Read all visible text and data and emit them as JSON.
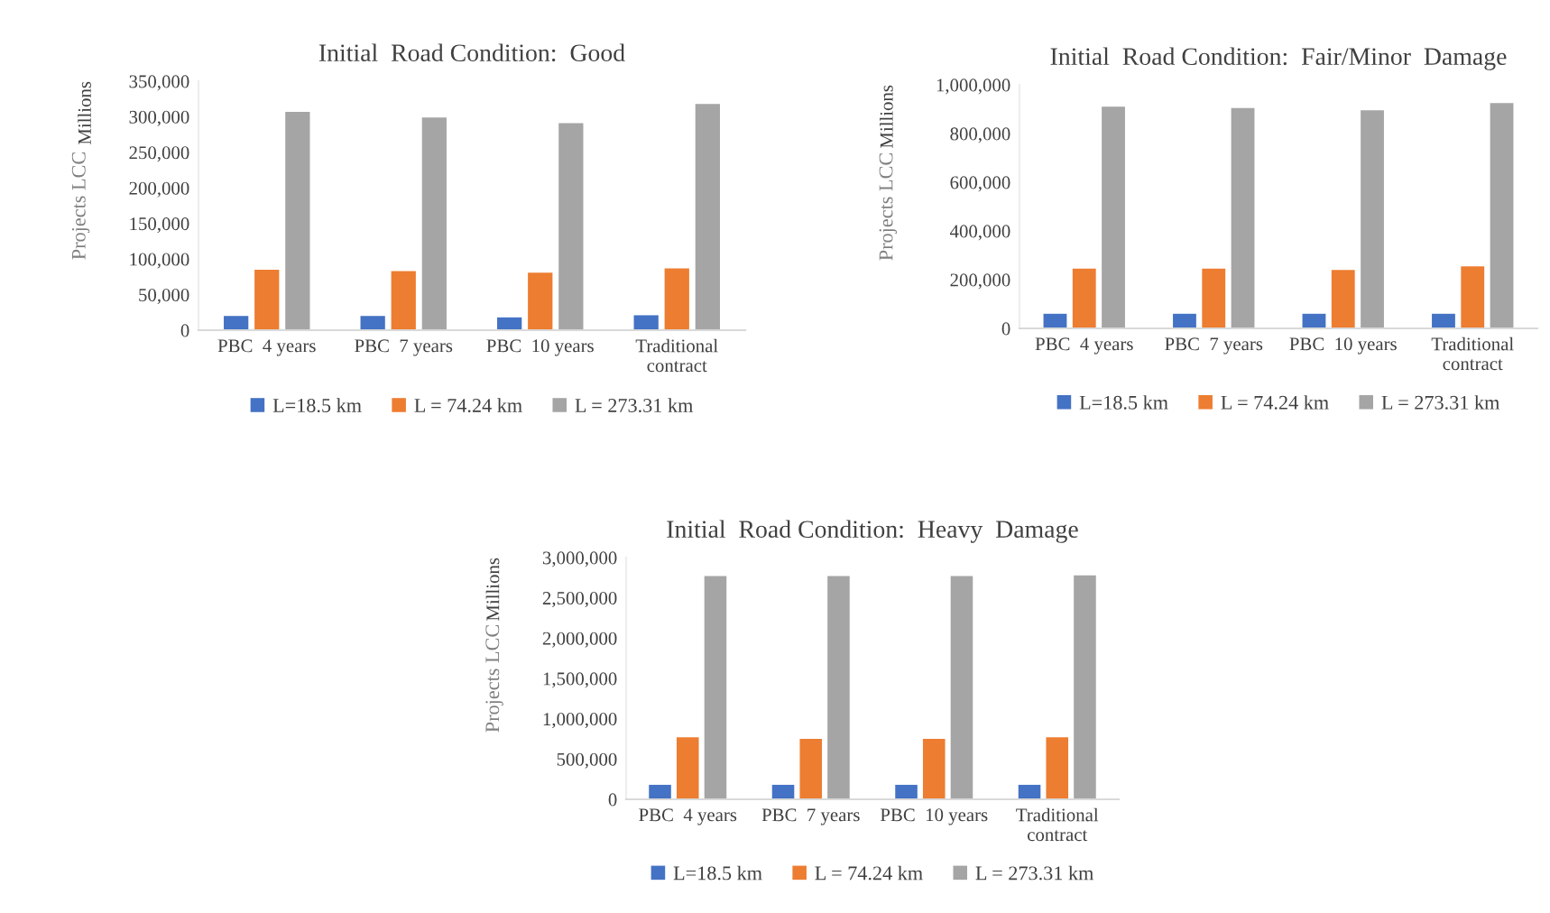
{
  "chart_data": [
    {
      "type": "bar",
      "title": "Initial  Road Condition:  Good",
      "ylabel": "Projects LCC",
      "annotations": [
        "Millions"
      ],
      "categories": [
        "PBC  4 years",
        "PBC  7 years",
        "PBC  10 years",
        "Traditional\ncontract"
      ],
      "series": [
        {
          "name": "L=18.5 km",
          "color": "#4472c4",
          "values": [
            20000,
            20000,
            18000,
            21000
          ]
        },
        {
          "name": "L = 74.24 km",
          "color": "#ed7d31",
          "values": [
            85000,
            83000,
            81000,
            87000
          ]
        },
        {
          "name": "L = 273.31 km",
          "color": "#a5a5a5",
          "values": [
            307000,
            299000,
            291000,
            318000
          ]
        }
      ],
      "ylim": [
        0,
        350000
      ],
      "yticks": [
        {
          "value": 0,
          "label": "0"
        },
        {
          "value": 50000,
          "label": "50,000"
        },
        {
          "value": 100000,
          "label": "100,000"
        },
        {
          "value": 150000,
          "label": "150,000"
        },
        {
          "value": 200000,
          "label": "200,000"
        },
        {
          "value": 250000,
          "label": "250,000"
        },
        {
          "value": 300000,
          "label": "300,000"
        },
        {
          "value": 350000,
          "label": "350,000"
        }
      ],
      "grid": false,
      "legend": "bottom"
    },
    {
      "type": "bar",
      "title": "Initial  Road Condition:  Fair/Minor  Damage",
      "ylabel": "Projects LCC",
      "annotations": [
        "Millions"
      ],
      "categories": [
        "PBC  4 years",
        "PBC  7 years",
        "PBC  10 years",
        "Traditional\ncontract"
      ],
      "series": [
        {
          "name": "L=18.5 km",
          "color": "#4472c4",
          "values": [
            60000,
            60000,
            60000,
            60000
          ]
        },
        {
          "name": "L = 74.24 km",
          "color": "#ed7d31",
          "values": [
            245000,
            245000,
            240000,
            255000
          ]
        },
        {
          "name": "L = 273.31 km",
          "color": "#a5a5a5",
          "values": [
            910000,
            905000,
            895000,
            925000
          ]
        }
      ],
      "ylim": [
        0,
        1000000
      ],
      "yticks": [
        {
          "value": 0,
          "label": "0"
        },
        {
          "value": 200000,
          "label": "200,000"
        },
        {
          "value": 400000,
          "label": "400,000"
        },
        {
          "value": 600000,
          "label": "600,000"
        },
        {
          "value": 800000,
          "label": "800,000"
        },
        {
          "value": 1000000,
          "label": "1,000,000"
        }
      ],
      "grid": false,
      "legend": "bottom"
    },
    {
      "type": "bar",
      "title": "Initial  Road Condition:  Heavy  Damage",
      "ylabel": "Projects LCC",
      "annotations": [
        "Millions"
      ],
      "categories": [
        "PBC  4 years",
        "PBC  7 years",
        "PBC  10 years",
        "Traditional\ncontract"
      ],
      "series": [
        {
          "name": "L=18.5 km",
          "color": "#4472c4",
          "values": [
            180000,
            180000,
            180000,
            180000
          ]
        },
        {
          "name": "L = 74.24 km",
          "color": "#ed7d31",
          "values": [
            770000,
            750000,
            750000,
            770000
          ]
        },
        {
          "name": "L = 273.31 km",
          "color": "#a5a5a5",
          "values": [
            2770000,
            2770000,
            2770000,
            2780000
          ]
        }
      ],
      "ylim": [
        0,
        3000000
      ],
      "yticks": [
        {
          "value": 0,
          "label": "0"
        },
        {
          "value": 500000,
          "label": "500,000"
        },
        {
          "value": 1000000,
          "label": "1,000,000"
        },
        {
          "value": 1500000,
          "label": "1,500,000"
        },
        {
          "value": 2000000,
          "label": "2,000,000"
        },
        {
          "value": 2500000,
          "label": "2,500,000"
        },
        {
          "value": 3000000,
          "label": "3,000,000"
        }
      ],
      "grid": false,
      "legend": "bottom"
    }
  ]
}
